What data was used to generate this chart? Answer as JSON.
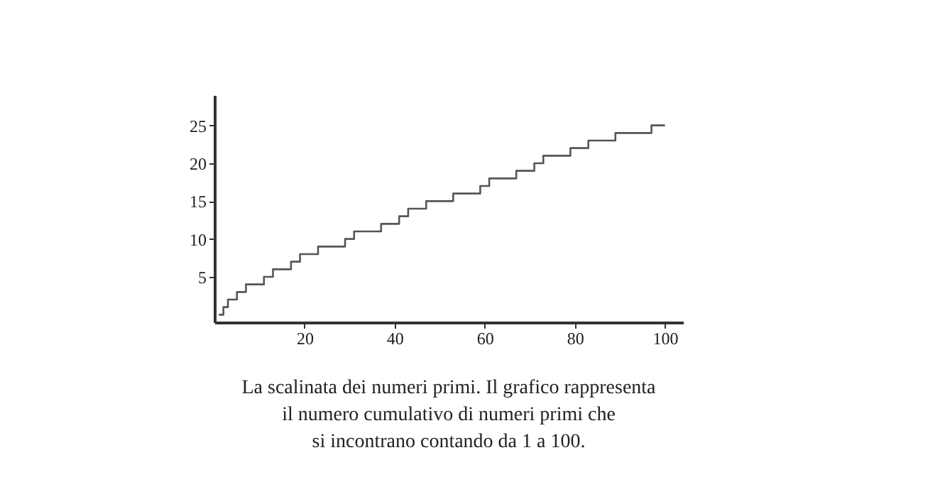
{
  "chart_data": {
    "type": "step",
    "x": [
      1,
      2,
      3,
      5,
      7,
      11,
      13,
      17,
      19,
      23,
      29,
      31,
      37,
      41,
      43,
      47,
      53,
      59,
      61,
      67,
      71,
      73,
      79,
      83,
      89,
      97,
      100
    ],
    "values": [
      0,
      1,
      2,
      3,
      4,
      5,
      6,
      7,
      8,
      9,
      10,
      11,
      12,
      13,
      14,
      15,
      16,
      17,
      18,
      19,
      20,
      21,
      22,
      23,
      24,
      25,
      25
    ],
    "color": "#555555",
    "xlim": [
      0,
      104
    ],
    "xticks": [
      20,
      40,
      60,
      80,
      100
    ],
    "ylim": [
      -1,
      29
    ],
    "yticks": [
      5,
      10,
      15,
      20,
      25
    ],
    "grid": false,
    "marker": "none",
    "line_style": "solid",
    "annotations": [
      "La scalinata dei numeri primi. Il grafico rappresenta",
      "il numero cumulativo di numeri primi che",
      "si incontrano contando da 1 a 100."
    ]
  }
}
